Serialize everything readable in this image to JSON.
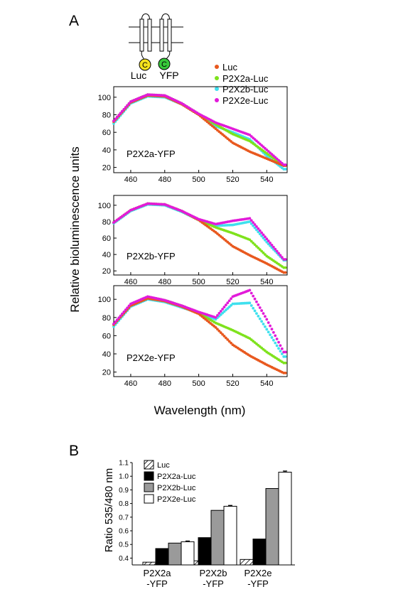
{
  "panel_labels": [
    "A",
    "B"
  ],
  "schematic": {
    "labels": [
      "Luc",
      "YFP"
    ],
    "glyph": "C"
  },
  "colors": {
    "Luc": "#e8581e",
    "P2X2a-Luc": "#7ee21c",
    "P2X2b-Luc": "#3fe0ee",
    "P2X2e-Luc": "#e21ad9"
  },
  "chart_data": [
    {
      "type": "scatter",
      "panel": "A",
      "shared_ylabel": "Relative bioluminescence units",
      "shared_xlabel": "Wavelength (nm)",
      "legend_position": "top-right",
      "legend": [
        "Luc",
        "P2X2a-Luc",
        "P2X2b-Luc",
        "P2X2e-Luc"
      ],
      "xlim": [
        450,
        552
      ],
      "x_ticks": [
        460,
        480,
        500,
        520,
        540
      ],
      "subplots": [
        {
          "label": "P2X2a-YFP",
          "ylim": [
            14,
            112
          ],
          "y_ticks": [
            20,
            40,
            60,
            80,
            100
          ],
          "series": [
            {
              "name": "Luc",
              "x": [
                450,
                460,
                470,
                480,
                490,
                500,
                510,
                520,
                530,
                540,
                550
              ],
              "values": [
                72,
                94,
                102,
                101,
                92,
                80,
                64,
                48,
                38,
                30,
                22
              ]
            },
            {
              "name": "P2X2a-Luc",
              "x": [
                450,
                460,
                470,
                480,
                490,
                500,
                510,
                520,
                530,
                540,
                550
              ],
              "values": [
                73,
                95,
                103,
                102,
                93,
                81,
                69,
                58,
                50,
                36,
                22
              ]
            },
            {
              "name": "P2X2b-Luc",
              "x": [
                450,
                460,
                470,
                480,
                490,
                500,
                510,
                520,
                530,
                540,
                550
              ],
              "values": [
                70,
                93,
                101,
                100,
                92,
                80,
                67,
                60,
                52,
                33,
                18
              ]
            },
            {
              "name": "P2X2e-Luc",
              "x": [
                450,
                460,
                470,
                480,
                490,
                500,
                510,
                520,
                530,
                540,
                550
              ],
              "values": [
                73,
                95,
                103,
                102,
                93,
                81,
                71,
                64,
                57,
                40,
                23
              ]
            }
          ]
        },
        {
          "label": "P2X2b-YFP",
          "ylim": [
            15,
            112
          ],
          "y_ticks": [
            20,
            40,
            60,
            80,
            100
          ],
          "series": [
            {
              "name": "Luc",
              "x": [
                450,
                460,
                470,
                480,
                490,
                500,
                510,
                520,
                530,
                540,
                550
              ],
              "values": [
                79,
                94,
                102,
                101,
                93,
                82,
                67,
                50,
                39,
                29,
                18
              ]
            },
            {
              "name": "P2X2a-Luc",
              "x": [
                450,
                460,
                470,
                480,
                490,
                500,
                510,
                520,
                530,
                540,
                550
              ],
              "values": [
                79,
                94,
                102,
                101,
                93,
                82,
                73,
                66,
                58,
                38,
                24
              ]
            },
            {
              "name": "P2X2b-Luc",
              "x": [
                450,
                460,
                470,
                480,
                490,
                500,
                510,
                520,
                530,
                540,
                550
              ],
              "values": [
                78,
                93,
                101,
                100,
                92,
                82,
                75,
                76,
                80,
                55,
                33
              ]
            },
            {
              "name": "P2X2e-Luc",
              "x": [
                450,
                460,
                470,
                480,
                490,
                500,
                510,
                520,
                530,
                540,
                550
              ],
              "values": [
                79,
                94,
                102,
                101,
                93,
                83,
                77,
                81,
                84,
                59,
                34
              ]
            }
          ]
        },
        {
          "label": "P2X2e-YFP",
          "ylim": [
            15,
            115
          ],
          "y_ticks": [
            20,
            40,
            60,
            80,
            100
          ],
          "series": [
            {
              "name": "Luc",
              "x": [
                450,
                460,
                470,
                480,
                490,
                500,
                510,
                520,
                530,
                540,
                550
              ],
              "values": [
                72,
                93,
                101,
                98,
                92,
                84,
                69,
                50,
                38,
                28,
                19
              ]
            },
            {
              "name": "P2X2a-Luc",
              "x": [
                450,
                460,
                470,
                480,
                490,
                500,
                510,
                520,
                530,
                540,
                550
              ],
              "values": [
                72,
                94,
                102,
                99,
                93,
                85,
                74,
                66,
                57,
                42,
                30
              ]
            },
            {
              "name": "P2X2b-Luc",
              "x": [
                450,
                460,
                470,
                480,
                490,
                500,
                510,
                520,
                530,
                540,
                550
              ],
              "values": [
                70,
                92,
                100,
                97,
                91,
                85,
                78,
                95,
                96,
                67,
                37
              ]
            },
            {
              "name": "P2X2e-Luc",
              "x": [
                450,
                460,
                470,
                480,
                490,
                500,
                510,
                520,
                530,
                540,
                550
              ],
              "values": [
                73,
                95,
                103,
                99,
                93,
                86,
                80,
                103,
                110,
                78,
                42
              ]
            }
          ]
        }
      ]
    },
    {
      "type": "bar",
      "panel": "B",
      "ylabel": "Ratio 535/480 nm",
      "ylim": [
        0.35,
        1.1
      ],
      "y_ticks": [
        "0.4",
        "0.5",
        "0.6",
        "0.7",
        "0.8",
        "0.9",
        "1.0",
        "1.1"
      ],
      "y_tick_values": [
        0.4,
        0.5,
        0.6,
        0.7,
        0.8,
        0.9,
        1.0,
        1.1
      ],
      "legend_position": "top-left",
      "categories": [
        "P2X2a -YFP",
        "P2X2b -YFP",
        "P2X2e -YFP"
      ],
      "category_lines": [
        [
          "P2X2a",
          "-YFP"
        ],
        [
          "P2X2b",
          "-YFP"
        ],
        [
          "P2X2e",
          "-YFP"
        ]
      ],
      "series": [
        {
          "name": "Luc",
          "fill": "hatch",
          "values": [
            0.37,
            0.38,
            0.39
          ],
          "errors": [
            0,
            0,
            0
          ]
        },
        {
          "name": "P2X2a-Luc",
          "fill": "#000000",
          "values": [
            0.47,
            0.55,
            0.54
          ],
          "errors": [
            0,
            0,
            0
          ]
        },
        {
          "name": "P2X2b-Luc",
          "fill": "#9a9a9a",
          "values": [
            0.51,
            0.75,
            0.91
          ],
          "errors": [
            0,
            0,
            0
          ]
        },
        {
          "name": "P2X2e-Luc",
          "fill": "#ffffff",
          "values": [
            0.52,
            0.78,
            1.03
          ],
          "errors": [
            0.005,
            0.006,
            0.008
          ]
        }
      ]
    }
  ]
}
